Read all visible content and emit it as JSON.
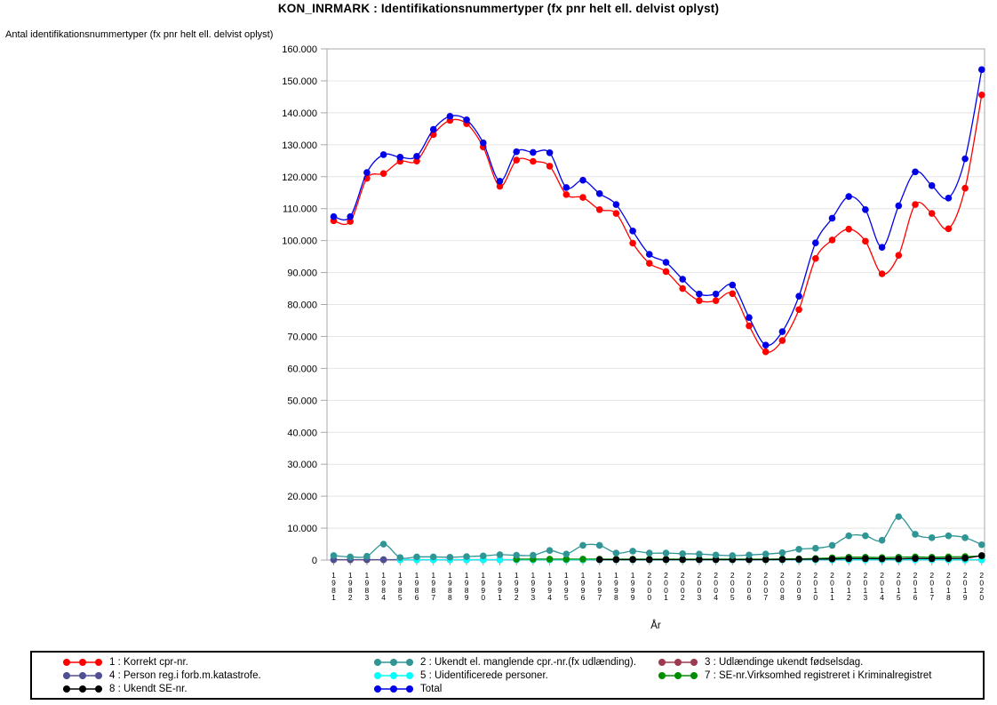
{
  "chart_data": {
    "type": "line",
    "title": "KON_INRMARK : Identifikationsnummertyper (fx pnr helt ell. delvist oplyst)",
    "ylabel": "Antal identifikationsnummertyper (fx pnr helt ell. delvist oplyst)",
    "xlabel": "År",
    "ylim": [
      0,
      160000
    ],
    "ytick_step": 10000,
    "grid": true,
    "legend_position": "bottom",
    "x": [
      1981,
      1982,
      1983,
      1984,
      1985,
      1986,
      1987,
      1988,
      1989,
      1990,
      1991,
      1992,
      1993,
      1994,
      1995,
      1996,
      1997,
      1998,
      1999,
      2000,
      2001,
      2002,
      2003,
      2004,
      2005,
      2006,
      2007,
      2008,
      2009,
      2010,
      2011,
      2012,
      2013,
      2014,
      2015,
      2016,
      2017,
      2018,
      2019,
      2020
    ],
    "series": [
      {
        "id": "korrekt-cpr",
        "name": "1 : Korrekt cpr-nr.",
        "color": "#FF0000",
        "values": [
          106200,
          106000,
          119500,
          121000,
          124800,
          124900,
          133200,
          137600,
          136600,
          129300,
          117000,
          125200,
          124800,
          123300,
          114400,
          113500,
          109700,
          108500,
          99200,
          92900,
          90300,
          85000,
          81200,
          81200,
          83400,
          73300,
          65200,
          68700,
          78400,
          94400,
          100200,
          103600,
          99800,
          89600,
          95400,
          111300,
          108500,
          103700,
          116400,
          145600
        ]
      },
      {
        "id": "ukendt-cpr",
        "name": "2 : Ukendt el. manglende cpr.-nr.(fx udlænding).",
        "color": "#2F9595",
        "values": [
          1400,
          1000,
          1200,
          5000,
          800,
          1000,
          1000,
          900,
          1100,
          1300,
          1700,
          1500,
          1500,
          3000,
          1900,
          4600,
          4600,
          2200,
          2800,
          2200,
          2200,
          2000,
          1900,
          1600,
          1400,
          1600,
          1900,
          2300,
          3400,
          3700,
          4600,
          7600,
          7600,
          6200,
          13600,
          8100,
          7000,
          7600,
          7000,
          4800
        ]
      },
      {
        "id": "udlaendinge-foedselsdag",
        "name": "3 : Udlændinge ukendt fødselsdag.",
        "color": "#9B3A50",
        "values": [
          100,
          100,
          100,
          100,
          100,
          100,
          100,
          100,
          100,
          100,
          100,
          100,
          100,
          100,
          100,
          100,
          100,
          100,
          100,
          100,
          100,
          100,
          100,
          100,
          100,
          100,
          100,
          100,
          100,
          100,
          100,
          100,
          100,
          100,
          100,
          100,
          100,
          100,
          100,
          100
        ]
      },
      {
        "id": "katastrofe",
        "name": "4 : Person reg.i forb.m.katastrofe.",
        "color": "#4F4F93",
        "values": [
          150,
          150,
          150,
          150,
          150,
          150,
          150,
          150,
          150,
          150,
          150,
          150,
          150,
          150,
          150,
          150,
          150,
          150,
          150,
          150,
          150,
          150,
          150,
          150,
          150,
          150,
          150,
          150,
          150,
          150,
          150,
          150,
          150,
          150,
          150,
          150,
          150,
          150,
          150,
          150
        ]
      },
      {
        "id": "uidentificerede",
        "name": "5 : Uidentificerede personer.",
        "color": "#00FFFF",
        "values": [
          null,
          null,
          null,
          null,
          100,
          100,
          100,
          100,
          100,
          100,
          100,
          100,
          100,
          100,
          100,
          100,
          100,
          100,
          100,
          100,
          100,
          100,
          100,
          100,
          100,
          100,
          100,
          100,
          100,
          100,
          100,
          100,
          100,
          100,
          100,
          100,
          100,
          100,
          100,
          100
        ]
      },
      {
        "id": "se-kriminalregistret",
        "name": "7 : SE-nr.Virksomhed registreret i Kriminalregistret",
        "color": "#008D00",
        "values": [
          null,
          null,
          null,
          null,
          null,
          null,
          null,
          null,
          null,
          null,
          null,
          300,
          300,
          300,
          300,
          300,
          300,
          300,
          300,
          300,
          300,
          300,
          300,
          300,
          300,
          300,
          300,
          400,
          400,
          500,
          700,
          900,
          900,
          800,
          900,
          1000,
          900,
          1000,
          1100,
          1300
        ]
      },
      {
        "id": "ukendt-se",
        "name": "8 : Ukendt SE-nr.",
        "color": "#000000",
        "values": [
          null,
          null,
          null,
          null,
          null,
          null,
          null,
          null,
          null,
          null,
          null,
          null,
          null,
          null,
          null,
          null,
          150,
          150,
          150,
          150,
          150,
          150,
          150,
          150,
          150,
          150,
          150,
          200,
          250,
          300,
          350,
          450,
          450,
          400,
          400,
          500,
          450,
          500,
          600,
          1400
        ]
      },
      {
        "id": "total",
        "name": "Total",
        "color": "#0000E8",
        "values": [
          107500,
          107500,
          121300,
          126900,
          126100,
          126400,
          134800,
          138900,
          137800,
          130600,
          118600,
          127800,
          127600,
          127500,
          116600,
          118900,
          114700,
          111300,
          103000,
          95700,
          93200,
          87900,
          83300,
          83300,
          86100,
          75900,
          67300,
          71500,
          82600,
          99300,
          107000,
          113800,
          109700,
          97900,
          110900,
          121500,
          117200,
          113300,
          125600,
          153500
        ]
      }
    ],
    "draw_order": [
      2,
      3,
      4,
      5,
      6,
      1,
      0,
      7
    ],
    "colors": {
      "grid": "#E4E4E4",
      "frame": "#A9A9A9",
      "tick": "#A9A9A9",
      "text": "#000000"
    }
  }
}
